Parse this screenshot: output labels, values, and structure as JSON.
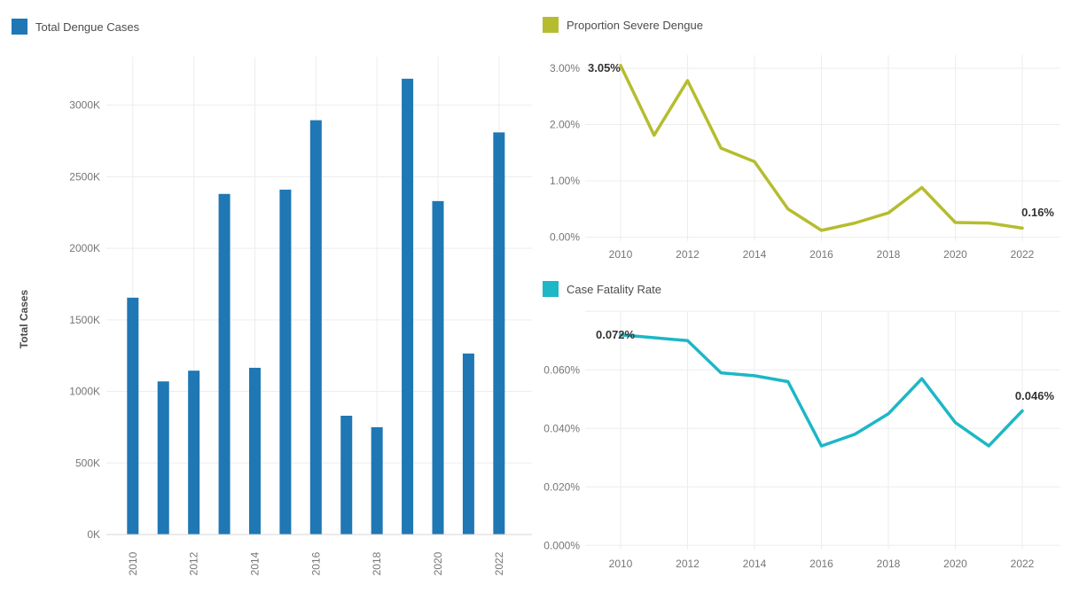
{
  "page": {
    "background": "#ffffff",
    "grid_color": "#ededed",
    "baseline_color": "#d7d7d7"
  },
  "chart_data": [
    {
      "type": "bar",
      "legend_label": "Total Dengue Cases",
      "ylabel": "Total Cases",
      "color": "#1f77b4",
      "unit": "K (thousands of cases)",
      "categories": [
        2010,
        2011,
        2012,
        2013,
        2014,
        2015,
        2016,
        2017,
        2018,
        2019,
        2020,
        2021,
        2022
      ],
      "values": [
        1655,
        1070,
        1145,
        2380,
        1165,
        2410,
        2895,
        830,
        750,
        3185,
        2330,
        1265,
        2810
      ],
      "ylim": [
        0,
        3300
      ],
      "y_tick_values": [
        0,
        500,
        1000,
        1500,
        2000,
        2500,
        3000
      ],
      "y_tick_labels": [
        "0K",
        "500K",
        "1000K",
        "1500K",
        "2000K",
        "2500K",
        "3000K"
      ],
      "x_tick_labels": [
        "2010",
        "2012",
        "2014",
        "2016",
        "2018",
        "2020",
        "2022"
      ],
      "grid": true,
      "legend_position": "top-left"
    },
    {
      "type": "line",
      "legend_label": "Proportion Severe Dengue",
      "color": "#b5bd2f",
      "unit": "%",
      "categories": [
        2010,
        2011,
        2012,
        2013,
        2014,
        2015,
        2016,
        2017,
        2018,
        2019,
        2020,
        2021,
        2022
      ],
      "values": [
        3.05,
        1.81,
        2.78,
        1.58,
        1.34,
        0.5,
        0.12,
        0.25,
        0.43,
        0.88,
        0.26,
        0.25,
        0.16
      ],
      "ylim": [
        0,
        3.3
      ],
      "y_tick_values": [
        0,
        1,
        2,
        3
      ],
      "y_tick_labels": [
        "0.00%",
        "1.00%",
        "2.00%",
        "3.00%"
      ],
      "x_tick_labels": [
        "2010",
        "2012",
        "2014",
        "2016",
        "2018",
        "2020",
        "2022"
      ],
      "first_point_label": "3.05%",
      "last_point_label": "0.16%",
      "grid": true,
      "legend_position": "top-left"
    },
    {
      "type": "line",
      "legend_label": "Case Fatality Rate",
      "color": "#1db7c6",
      "unit": "%",
      "categories": [
        2010,
        2011,
        2012,
        2013,
        2014,
        2015,
        2016,
        2017,
        2018,
        2019,
        2020,
        2021,
        2022
      ],
      "values": [
        0.072,
        0.071,
        0.07,
        0.059,
        0.058,
        0.056,
        0.034,
        0.038,
        0.045,
        0.057,
        0.042,
        0.034,
        0.046
      ],
      "ylim": [
        0,
        0.081
      ],
      "y_tick_values": [
        0,
        0.02,
        0.04,
        0.06
      ],
      "y_tick_labels": [
        "0.000%",
        "0.020%",
        "0.040%",
        "0.060%"
      ],
      "x_tick_labels": [
        "2010",
        "2012",
        "2014",
        "2016",
        "2018",
        "2020",
        "2022"
      ],
      "first_point_label": "0.072%",
      "last_point_label": "0.046%",
      "grid": true,
      "legend_position": "top-left"
    }
  ]
}
